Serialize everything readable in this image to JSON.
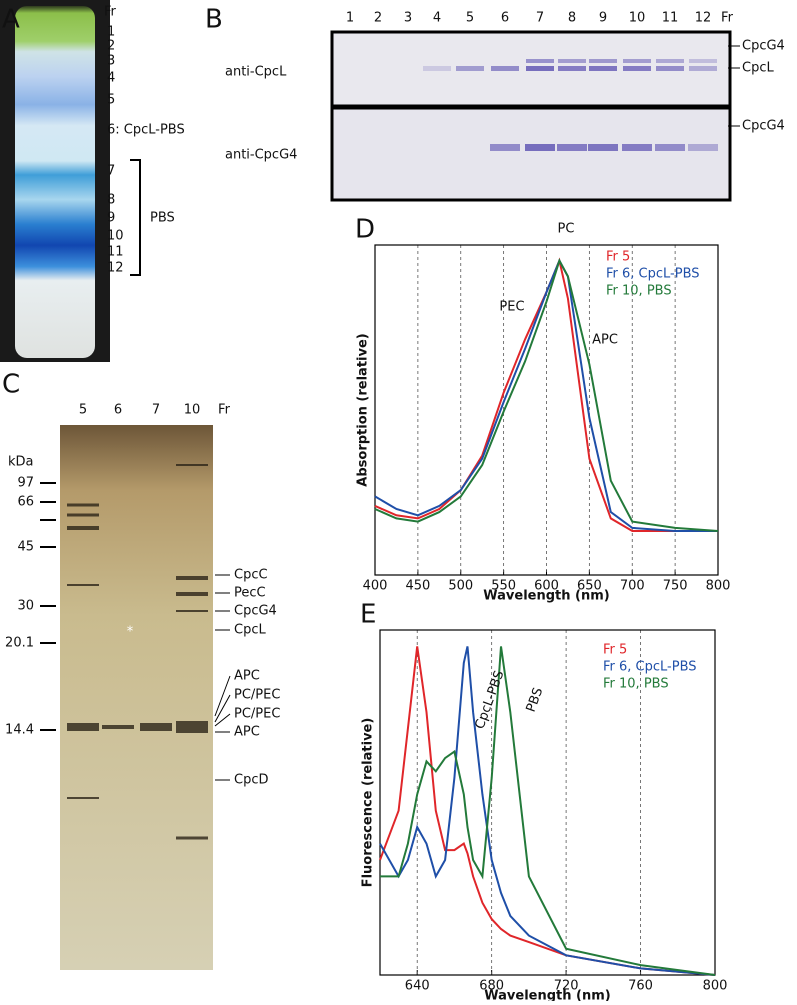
{
  "panels": {
    "A": {
      "label": "A",
      "fraction_header": "Fr",
      "fractions": [
        "1",
        "2",
        "3",
        "4",
        "5",
        "6: CpcL-PBS",
        "7",
        "8",
        "9",
        "10",
        "11",
        "12"
      ],
      "bracket_label": "PBS"
    },
    "B": {
      "label": "B",
      "lanes": [
        "1",
        "2",
        "3",
        "4",
        "5",
        "6",
        "7",
        "8",
        "9",
        "10",
        "11",
        "12",
        "Fr"
      ],
      "rows": [
        "anti-CpcL",
        "anti-CpcG4"
      ],
      "band_labels": [
        "CpcG4",
        "CpcL",
        "CpcG4"
      ]
    },
    "C": {
      "label": "C",
      "lanes": [
        "5",
        "6",
        "7",
        "10",
        "Fr"
      ],
      "unit": "kDa",
      "markers": [
        "97",
        "66",
        "45",
        "30",
        "20.1",
        "14.4"
      ],
      "asterisk": "*",
      "band_labels": [
        "CpcC",
        "PecC",
        "CpcG4",
        "CpcL",
        "APC",
        "PC/PEC",
        "PC/PEC",
        "APC",
        "CpcD"
      ]
    }
  },
  "chart_data": [
    {
      "type": "line",
      "panel_label": "D",
      "xlabel": "Wavelength (nm)",
      "ylabel": "Absorption (relative)",
      "x": [
        400,
        425,
        450,
        475,
        500,
        525,
        550,
        575,
        600,
        615,
        625,
        650,
        675,
        700,
        750,
        800
      ],
      "series": [
        {
          "name": "Fr 5",
          "color": "#e0262a",
          "values": [
            0.22,
            0.19,
            0.18,
            0.21,
            0.27,
            0.38,
            0.58,
            0.75,
            0.9,
            1.0,
            0.88,
            0.37,
            0.18,
            0.14,
            0.14,
            0.14
          ]
        },
        {
          "name": "Fr 6, CpcL-PBS",
          "color": "#1f4fa8",
          "values": [
            0.25,
            0.21,
            0.19,
            0.22,
            0.27,
            0.37,
            0.55,
            0.72,
            0.9,
            1.0,
            0.95,
            0.5,
            0.2,
            0.15,
            0.14,
            0.14
          ]
        },
        {
          "name": "Fr 10, PBS",
          "color": "#237a3a",
          "values": [
            0.21,
            0.18,
            0.17,
            0.2,
            0.25,
            0.35,
            0.52,
            0.68,
            0.87,
            1.0,
            0.95,
            0.67,
            0.3,
            0.17,
            0.15,
            0.14
          ]
        }
      ],
      "xlim": [
        400,
        800
      ],
      "ylim": [
        0,
        1.05
      ],
      "xticks": [
        400,
        450,
        500,
        550,
        600,
        650,
        700,
        750,
        800
      ],
      "grid": true,
      "annotations": [
        "PC",
        "PEC",
        "APC"
      ]
    },
    {
      "type": "line",
      "panel_label": "E",
      "xlabel": "Wavelength (nm)",
      "ylabel": "Fluorescence (relative)",
      "x": [
        620,
        630,
        635,
        640,
        645,
        650,
        655,
        660,
        665,
        667,
        670,
        675,
        680,
        685,
        690,
        700,
        720,
        760,
        800
      ],
      "series": [
        {
          "name": "Fr 5",
          "color": "#e0262a",
          "values": [
            0.35,
            0.5,
            0.75,
            1.0,
            0.8,
            0.5,
            0.38,
            0.38,
            0.4,
            0.37,
            0.3,
            0.22,
            0.17,
            0.14,
            0.12,
            0.1,
            0.06,
            0.02,
            0.0
          ]
        },
        {
          "name": "Fr 6, CpcL-PBS",
          "color": "#1f4fa8",
          "values": [
            0.4,
            0.3,
            0.35,
            0.45,
            0.4,
            0.3,
            0.35,
            0.6,
            0.95,
            1.0,
            0.8,
            0.55,
            0.35,
            0.25,
            0.18,
            0.12,
            0.06,
            0.02,
            0.0
          ]
        },
        {
          "name": "Fr 10, PBS",
          "color": "#237a3a",
          "values": [
            0.3,
            0.3,
            0.4,
            0.55,
            0.65,
            0.62,
            0.66,
            0.68,
            0.55,
            0.45,
            0.35,
            0.3,
            0.6,
            1.0,
            0.8,
            0.3,
            0.08,
            0.03,
            0.0
          ]
        }
      ],
      "xlim": [
        620,
        800
      ],
      "ylim": [
        0,
        1.05
      ],
      "xticks": [
        640,
        680,
        720,
        760,
        800
      ],
      "grid": true,
      "annotations": [
        "CpcL-PBS",
        "PBS"
      ]
    }
  ]
}
